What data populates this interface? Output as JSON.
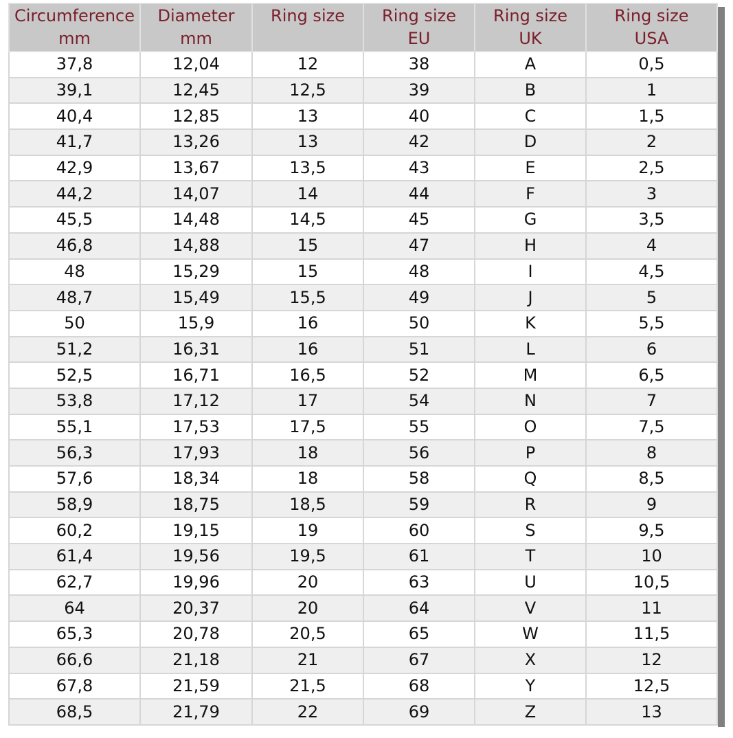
{
  "colors": {
    "header_bg": "#c8c8c8",
    "header_text": "#7a1f2b",
    "alt_row": "#efefef"
  },
  "table": {
    "headers": [
      [
        "Circumference",
        "mm"
      ],
      [
        "Diameter",
        "mm"
      ],
      [
        "Ring size",
        ""
      ],
      [
        "Ring size",
        "EU"
      ],
      [
        "Ring size",
        "UK"
      ],
      [
        "Ring size",
        "USA"
      ]
    ],
    "rows": [
      [
        "37,8",
        "12,04",
        "12",
        "38",
        "A",
        "0,5"
      ],
      [
        "39,1",
        "12,45",
        "12,5",
        "39",
        "B",
        "1"
      ],
      [
        "40,4",
        "12,85",
        "13",
        "40",
        "C",
        "1,5"
      ],
      [
        "41,7",
        "13,26",
        "13",
        "42",
        "D",
        "2"
      ],
      [
        "42,9",
        "13,67",
        "13,5",
        "43",
        "E",
        "2,5"
      ],
      [
        "44,2",
        "14,07",
        "14",
        "44",
        "F",
        "3"
      ],
      [
        "45,5",
        "14,48",
        "14,5",
        "45",
        "G",
        "3,5"
      ],
      [
        "46,8",
        "14,88",
        "15",
        "47",
        "H",
        "4"
      ],
      [
        "48",
        "15,29",
        "15",
        "48",
        "I",
        "4,5"
      ],
      [
        "48,7",
        "15,49",
        "15,5",
        "49",
        "J",
        "5"
      ],
      [
        "50",
        "15,9",
        "16",
        "50",
        "K",
        "5,5"
      ],
      [
        "51,2",
        "16,31",
        "16",
        "51",
        "L",
        "6"
      ],
      [
        "52,5",
        "16,71",
        "16,5",
        "52",
        "M",
        "6,5"
      ],
      [
        "53,8",
        "17,12",
        "17",
        "54",
        "N",
        "7"
      ],
      [
        "55,1",
        "17,53",
        "17,5",
        "55",
        "O",
        "7,5"
      ],
      [
        "56,3",
        "17,93",
        "18",
        "56",
        "P",
        "8"
      ],
      [
        "57,6",
        "18,34",
        "18",
        "58",
        "Q",
        "8,5"
      ],
      [
        "58,9",
        "18,75",
        "18,5",
        "59",
        "R",
        "9"
      ],
      [
        "60,2",
        "19,15",
        "19",
        "60",
        "S",
        "9,5"
      ],
      [
        "61,4",
        "19,56",
        "19,5",
        "61",
        "T",
        "10"
      ],
      [
        "62,7",
        "19,96",
        "20",
        "63",
        "U",
        "10,5"
      ],
      [
        "64",
        "20,37",
        "20",
        "64",
        "V",
        "11"
      ],
      [
        "65,3",
        "20,78",
        "20,5",
        "65",
        "W",
        "11,5"
      ],
      [
        "66,6",
        "21,18",
        "21",
        "67",
        "X",
        "12"
      ],
      [
        "67,8",
        "21,59",
        "21,5",
        "68",
        "Y",
        "12,5"
      ],
      [
        "68,5",
        "21,79",
        "22",
        "69",
        "Z",
        "13"
      ]
    ]
  }
}
